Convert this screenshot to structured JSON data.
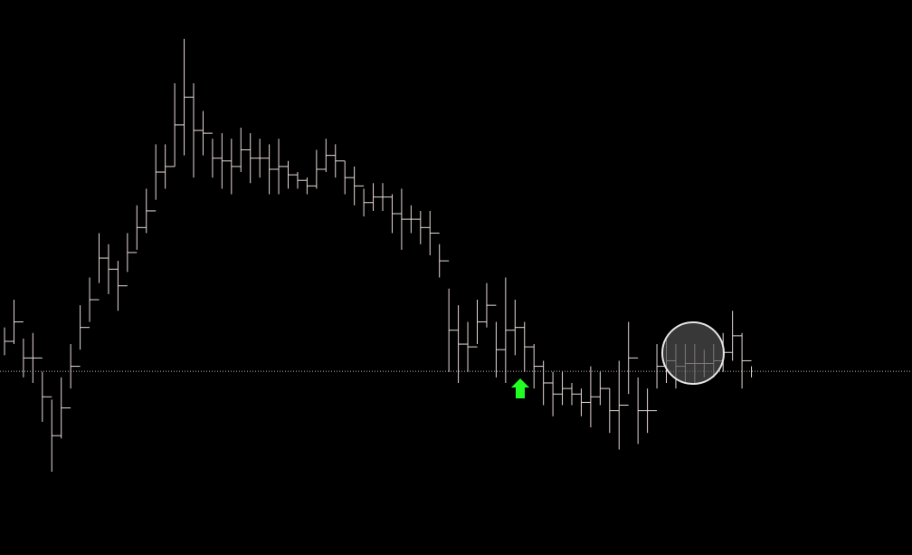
{
  "chart_data": {
    "type": "hilo",
    "color": "#e9dada",
    "level_color": "#bbbbbb",
    "ylim": [
      0,
      100
    ],
    "level": 33.1,
    "series": [
      {
        "name": "high",
        "values": [
          41,
          46,
          39,
          40,
          33,
          28,
          32,
          38,
          45,
          50,
          58,
          56,
          53,
          58,
          63,
          66,
          74,
          74,
          85,
          93,
          85,
          80,
          75,
          76,
          75,
          77,
          76,
          75,
          74,
          75,
          71,
          69,
          68,
          73,
          75,
          74,
          71,
          70,
          66,
          67,
          67,
          65,
          66,
          63,
          62,
          62,
          56,
          48,
          45,
          42,
          46,
          49,
          42,
          50,
          46,
          42,
          38,
          35,
          33,
          33,
          31,
          30,
          34,
          33,
          30,
          35,
          42,
          32,
          30,
          38,
          39,
          38,
          38,
          38,
          37,
          38,
          40,
          44,
          40,
          34
        ]
      },
      {
        "name": "low",
        "values": [
          36,
          38,
          32,
          31,
          24,
          15,
          21,
          30,
          37,
          42,
          49,
          47,
          44,
          51,
          55,
          58,
          64,
          66,
          70,
          72,
          68,
          72,
          68,
          66,
          65,
          69,
          67,
          68,
          65,
          65,
          66,
          66,
          65,
          66,
          69,
          68,
          65,
          63,
          61,
          62,
          62,
          58,
          55,
          58,
          56,
          54,
          50,
          33,
          31,
          33,
          38,
          41,
          32,
          31,
          36,
          33,
          30,
          27,
          25,
          27,
          27,
          25,
          23,
          27,
          22,
          19,
          29,
          20,
          22,
          30,
          31,
          30,
          31,
          31,
          32,
          32,
          33,
          35,
          30,
          32
        ]
      }
    ]
  }
}
